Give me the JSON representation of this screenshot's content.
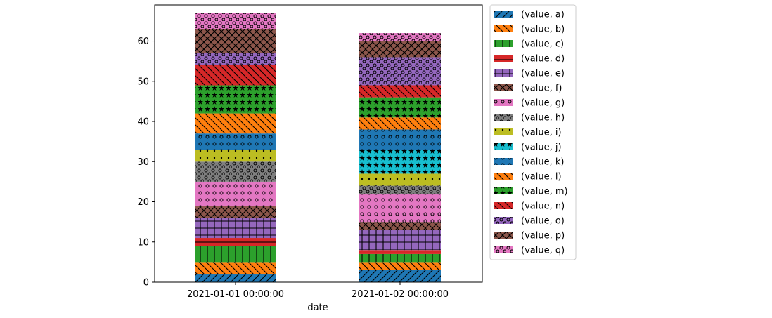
{
  "chart_data": {
    "type": "bar",
    "stacked": true,
    "xlabel": "date",
    "ylabel": "",
    "ylim": [
      0,
      69
    ],
    "yticks": [
      0,
      10,
      20,
      30,
      40,
      50,
      60
    ],
    "categories": [
      "2021-01-01 00:00:00",
      "2021-01-02 00:00:00"
    ],
    "legend_position": "outside-right",
    "grid": false,
    "series": [
      {
        "name": "(value, a)",
        "color": "#1f77b4",
        "hatch": "fwd",
        "values": [
          2,
          3
        ]
      },
      {
        "name": "(value, b)",
        "color": "#ff7f0e",
        "hatch": "back",
        "values": [
          3,
          2
        ]
      },
      {
        "name": "(value, c)",
        "color": "#2ca02c",
        "hatch": "vert",
        "values": [
          4,
          2
        ]
      },
      {
        "name": "(value, d)",
        "color": "#d62728",
        "hatch": "horiz",
        "values": [
          2,
          1
        ]
      },
      {
        "name": "(value, e)",
        "color": "#9467bd",
        "hatch": "grid",
        "values": [
          5,
          5
        ]
      },
      {
        "name": "(value, f)",
        "color": "#8c564b",
        "hatch": "cross",
        "values": [
          3,
          2
        ]
      },
      {
        "name": "(value, g)",
        "color": "#e377c2",
        "hatch": "dotsO",
        "values": [
          6,
          7
        ]
      },
      {
        "name": "(value, h)",
        "color": "#7f7f7f",
        "hatch": "ringsO",
        "values": [
          5,
          2
        ]
      },
      {
        "name": "(value, i)",
        "color": "#bcbd22",
        "hatch": "dots",
        "values": [
          3,
          3
        ]
      },
      {
        "name": "(value, j)",
        "color": "#17becf",
        "hatch": "stars",
        "values": [
          0,
          6
        ]
      },
      {
        "name": "(value, k)",
        "color": "#1f77b4",
        "hatch": "dotsO",
        "values": [
          4,
          5
        ]
      },
      {
        "name": "(value, l)",
        "color": "#ff7f0e",
        "hatch": "back",
        "values": [
          5,
          3
        ]
      },
      {
        "name": "(value, m)",
        "color": "#2ca02c",
        "hatch": "stars",
        "values": [
          7,
          5
        ]
      },
      {
        "name": "(value, n)",
        "color": "#d62728",
        "hatch": "back",
        "values": [
          5,
          3
        ]
      },
      {
        "name": "(value, o)",
        "color": "#9467bd",
        "hatch": "ringsO",
        "values": [
          3,
          7
        ]
      },
      {
        "name": "(value, p)",
        "color": "#8c564b",
        "hatch": "xdots",
        "values": [
          6,
          4
        ]
      },
      {
        "name": "(value, q)",
        "color": "#e377c2",
        "hatch": "ringsO",
        "values": [
          4,
          2
        ]
      }
    ]
  }
}
